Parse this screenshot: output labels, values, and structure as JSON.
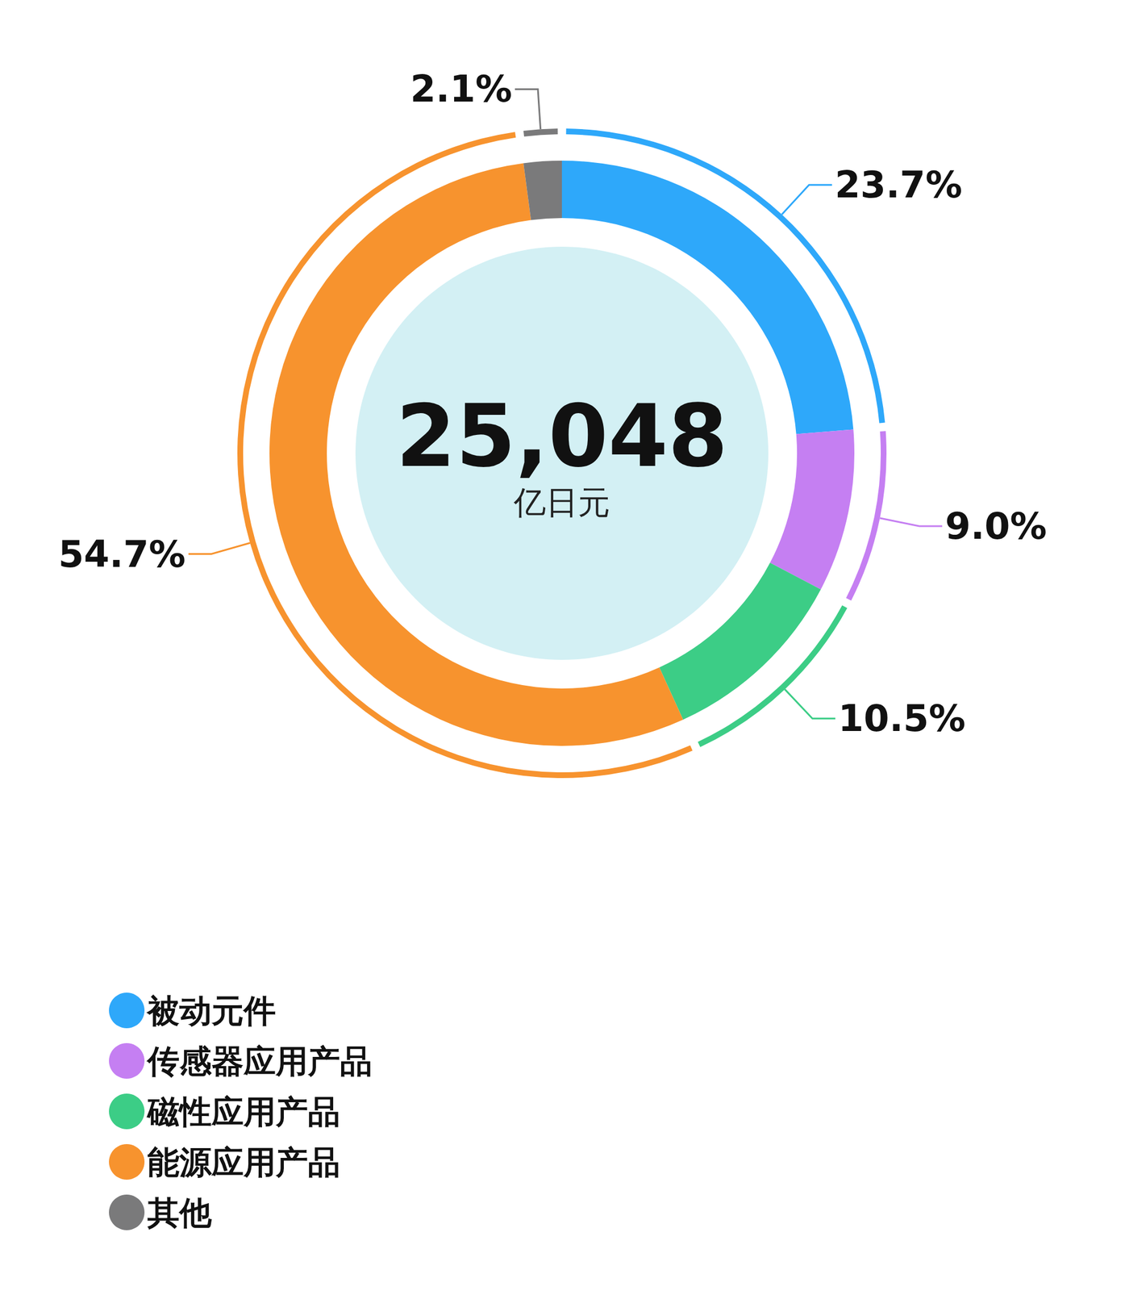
{
  "chart_data": {
    "type": "pie",
    "categories": [
      "被动元件",
      "传感器应用产品",
      "磁性应用产品",
      "能源应用产品",
      "其他"
    ],
    "values": [
      23.7,
      9.0,
      10.5,
      54.7,
      2.1
    ],
    "value_labels": [
      "23.7%",
      "9.0%",
      "10.5%",
      "54.7%",
      "2.1%"
    ],
    "colors": [
      "#2ea8fa",
      "#c57ff2",
      "#3ccd86",
      "#f7932e",
      "#7a7a7b"
    ],
    "annotations": [
      "25,048",
      "亿日元"
    ],
    "data_labels": true,
    "legend": "bottom-left"
  }
}
